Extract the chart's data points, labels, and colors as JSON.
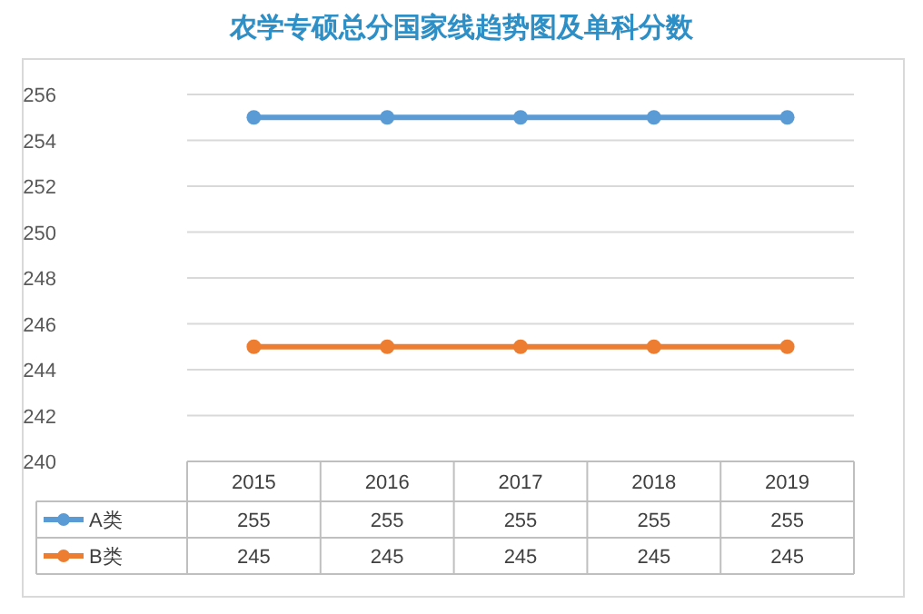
{
  "chart_data": {
    "type": "line",
    "title": "农学专硕总分国家线趋势图及单科分数",
    "categories": [
      "2015",
      "2016",
      "2017",
      "2018",
      "2019"
    ],
    "series": [
      {
        "name": "A类",
        "color": "#5b9bd5",
        "values": [
          255,
          255,
          255,
          255,
          255
        ]
      },
      {
        "name": "B类",
        "color": "#ed7d31",
        "values": [
          245,
          245,
          245,
          245,
          245
        ]
      }
    ],
    "ylim": [
      240,
      256
    ],
    "yticks": [
      240,
      242,
      244,
      246,
      248,
      250,
      252,
      254,
      256
    ],
    "grid": "y",
    "data_labels": true,
    "marker": "circle",
    "line_style": "solid",
    "legend": "bottom"
  }
}
